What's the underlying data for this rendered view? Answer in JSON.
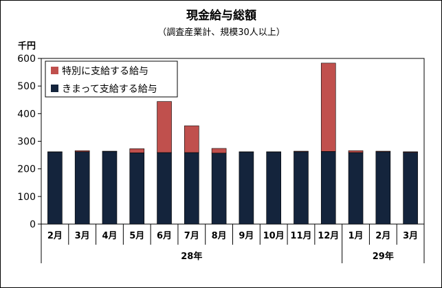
{
  "chart_data": {
    "type": "bar",
    "stacked": true,
    "title": "現金給与総額",
    "subtitle": "（調査産業計、規模30人以上）",
    "ylabel": "千円",
    "ylim": [
      0,
      600
    ],
    "yticks": [
      0,
      100,
      200,
      300,
      400,
      500,
      600
    ],
    "categories": [
      "2月",
      "3月",
      "4月",
      "5月",
      "6月",
      "7月",
      "8月",
      "9月",
      "10月",
      "11月",
      "12月",
      "1月",
      "2月",
      "3月"
    ],
    "year_groups": [
      {
        "label": "28年",
        "span": 11
      },
      {
        "label": "29年",
        "span": 3
      }
    ],
    "series": [
      {
        "name": "きまって支給する給与",
        "color": "#14243c",
        "values": [
          261,
          262,
          263,
          258,
          259,
          259,
          257,
          261,
          261,
          262,
          263,
          259,
          262,
          260
        ]
      },
      {
        "name": "特別に支給する給与",
        "color": "#c0504d",
        "values": [
          1,
          4,
          1,
          15,
          185,
          97,
          17,
          1,
          1,
          2,
          320,
          7,
          2,
          2
        ]
      }
    ],
    "legend_position": "top-left",
    "grid": false
  }
}
